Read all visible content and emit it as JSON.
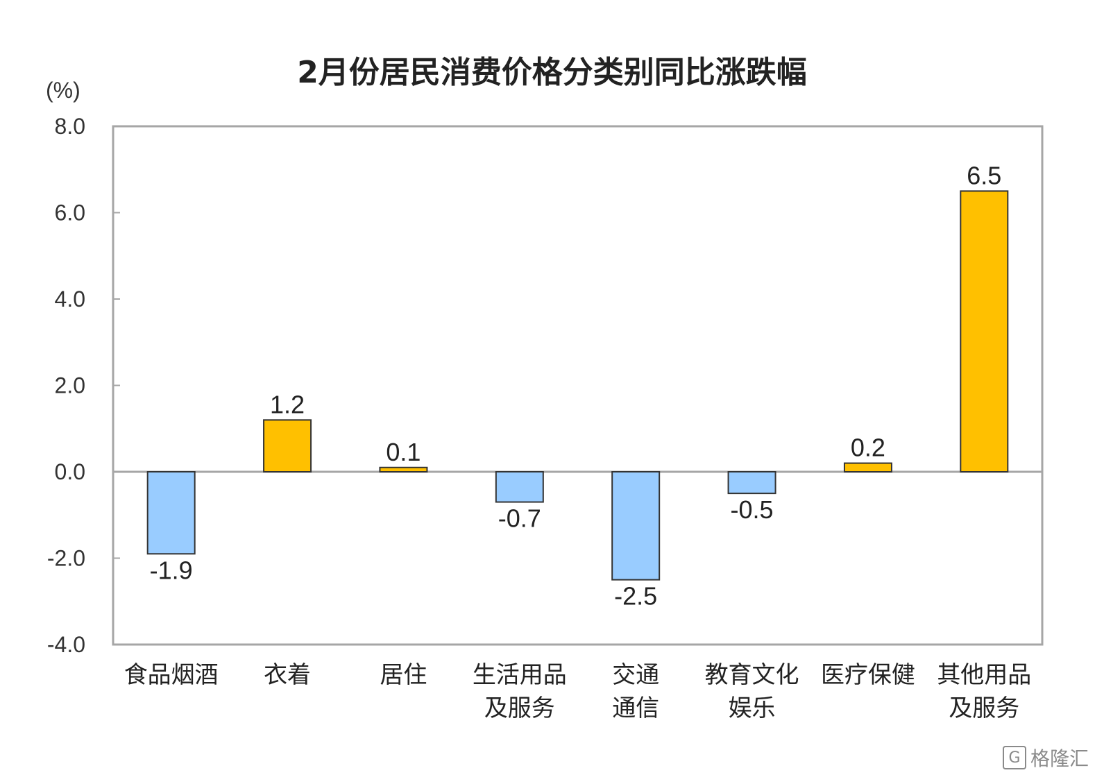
{
  "chart_data": {
    "type": "bar",
    "title": "2月份居民消费价格分类别同比涨跌幅",
    "unit_label": "(%)",
    "xlabel": "",
    "ylabel": "",
    "ylim": [
      -4.0,
      8.0
    ],
    "yticks": [
      "8.0",
      "6.0",
      "4.0",
      "2.0",
      "0.0",
      "-2.0",
      "-4.0"
    ],
    "ytick_values": [
      8,
      6,
      4,
      2,
      0,
      -2,
      -4
    ],
    "grid": false,
    "legend": "none",
    "categories": [
      [
        "食品烟酒"
      ],
      [
        "衣着"
      ],
      [
        "居住"
      ],
      [
        "生活用品",
        "及服务"
      ],
      [
        "交通",
        "通信"
      ],
      [
        "教育文化",
        "娱乐"
      ],
      [
        "医疗保健"
      ],
      [
        "其他用品",
        "及服务"
      ]
    ],
    "values": [
      -1.9,
      1.2,
      0.1,
      -0.7,
      -2.5,
      -0.5,
      0.2,
      6.5
    ],
    "value_labels": [
      "-1.9",
      "1.2",
      "0.1",
      "-0.7",
      "-2.5",
      "-0.5",
      "0.2",
      "6.5"
    ],
    "colors": {
      "positive": "#FFC000",
      "negative": "#99CCFF",
      "bar_border": "#333333",
      "frame": "#A6A6A6"
    }
  },
  "watermark": {
    "logo": "G",
    "text": "格隆汇"
  }
}
